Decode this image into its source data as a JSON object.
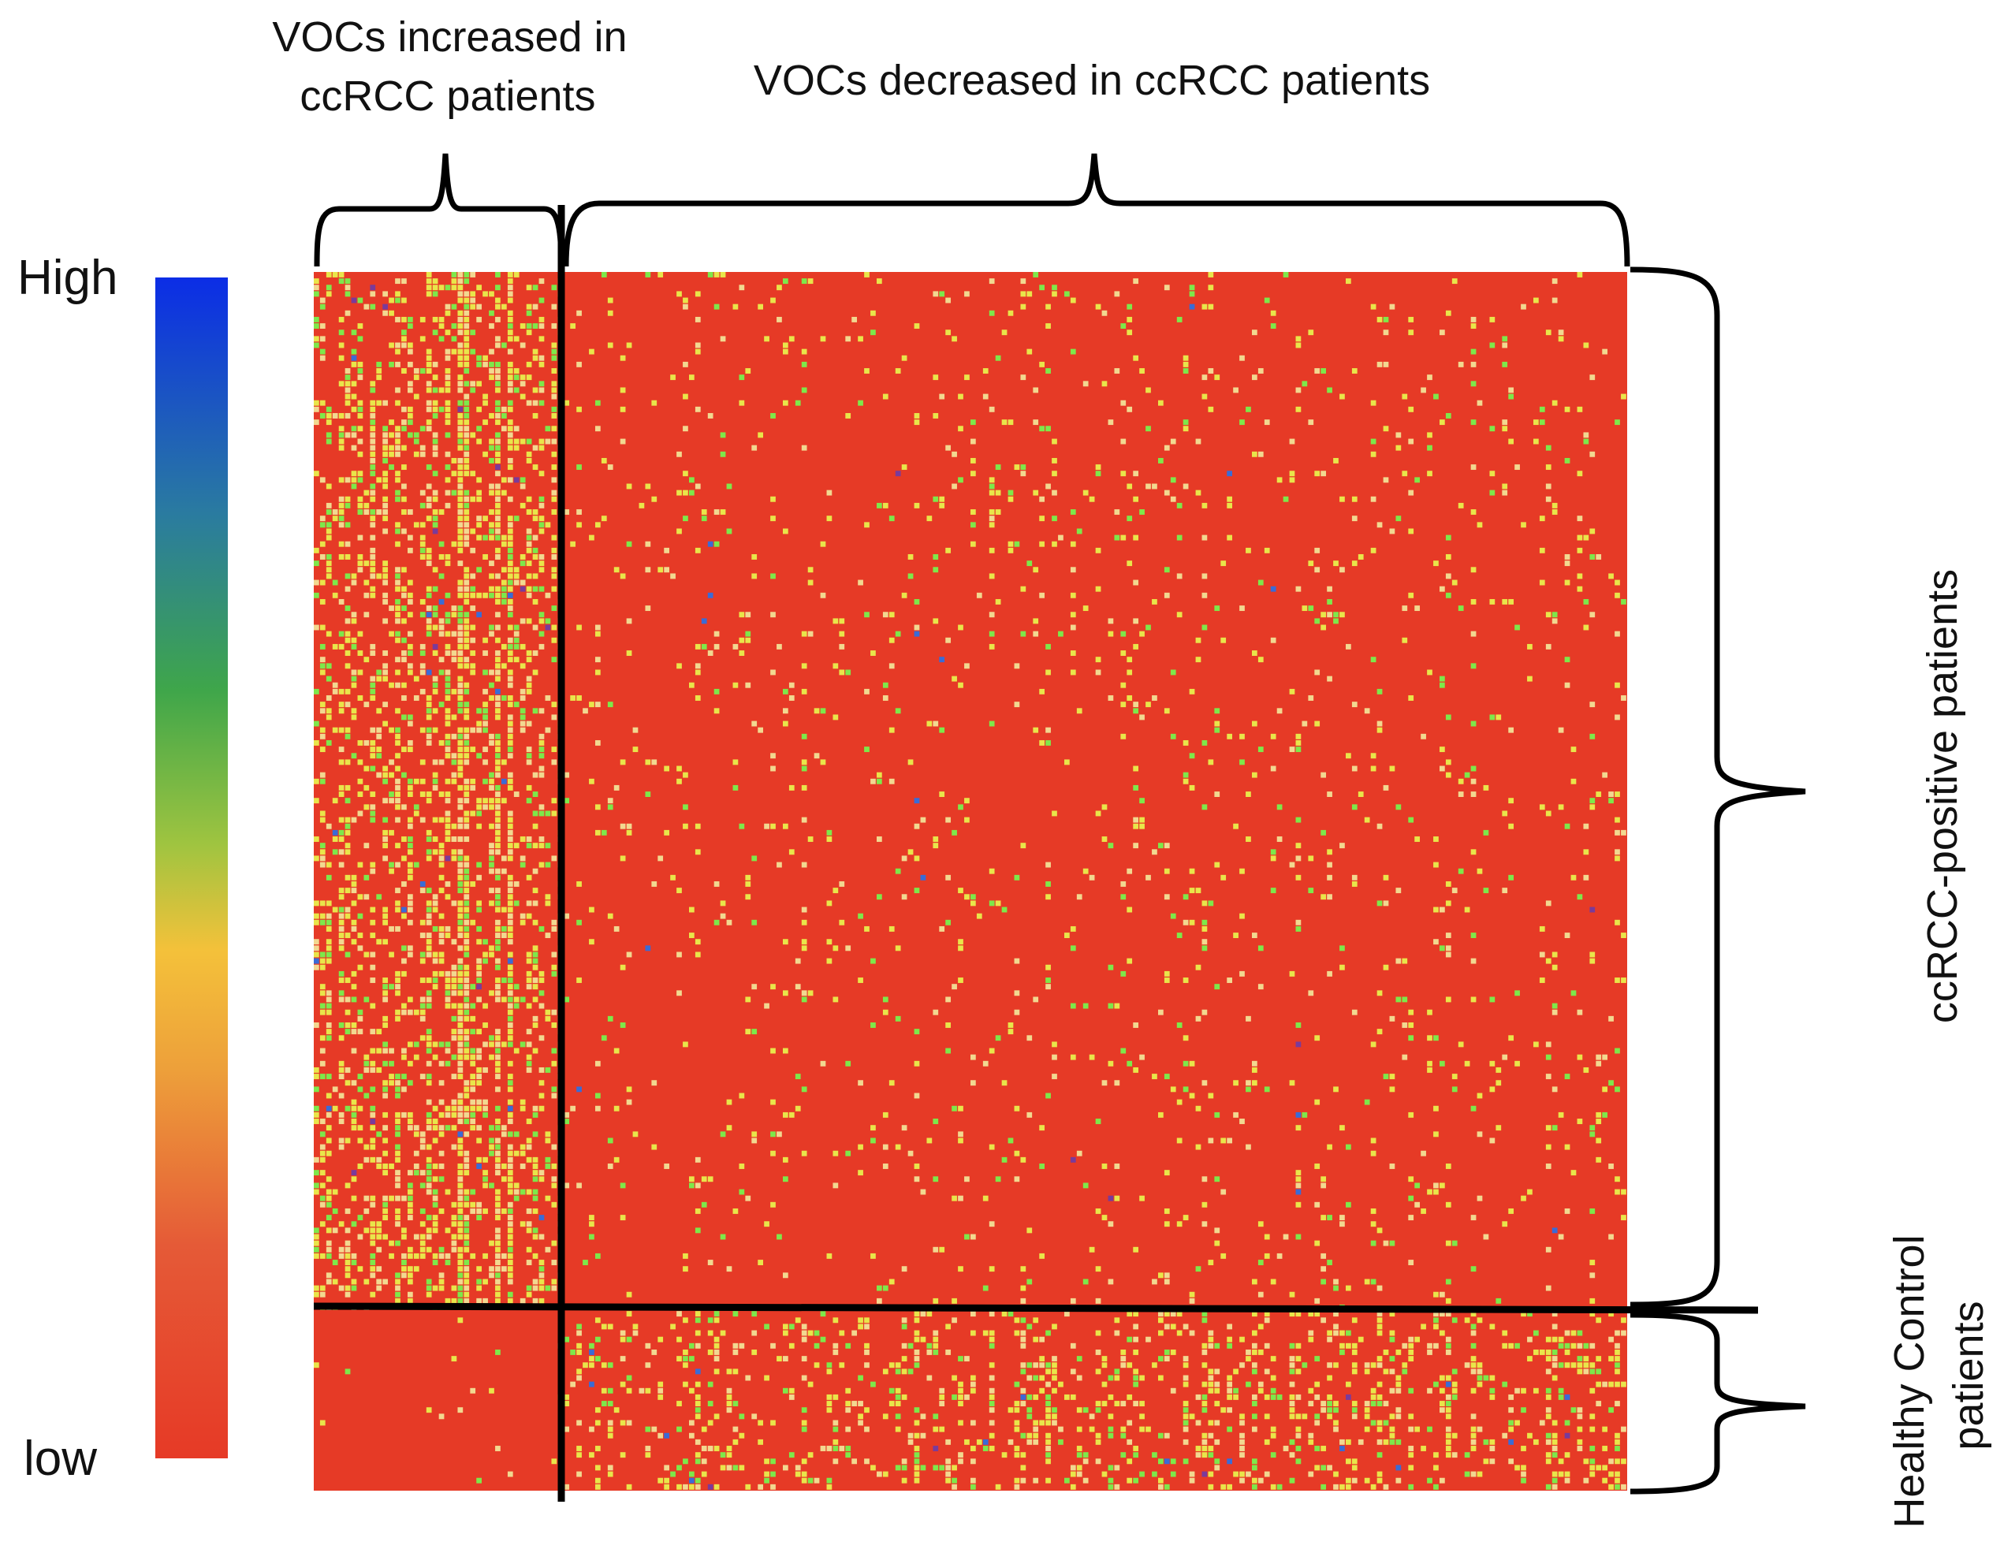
{
  "chart_data": {
    "type": "heatmap",
    "colorbar": {
      "high_label": "High",
      "low_label": "low",
      "colors": [
        "#0b2de6",
        "#2a7ba0",
        "#3fa64a",
        "#9fc440",
        "#f4c13a",
        "#eda03a",
        "#e55a37",
        "#e63a26"
      ]
    },
    "column_groups": [
      {
        "label_lines": [
          "VOCs increased in",
          "ccRCC patients"
        ],
        "relative_width": 0.19
      },
      {
        "label_lines": [
          "VOCs decreased in ccRCC patients"
        ],
        "relative_width": 0.81
      }
    ],
    "row_groups": [
      {
        "label_lines": [
          "ccRCC-positive patients"
        ],
        "relative_height": 0.85
      },
      {
        "label_lines": [
          "Healthy Control",
          "patients"
        ],
        "relative_height": 0.15
      }
    ],
    "cell_colors": {
      "base": "#e63a26",
      "pale": "#f2d890",
      "yellow": "#e9e54a",
      "green": "#7ee84a",
      "blue": "#3a6bd6",
      "purple": "#7a3a9a"
    },
    "density_notes": "increased VOCs show high values in ccRCC rows; decreased VOCs show high values in healthy control rows"
  }
}
